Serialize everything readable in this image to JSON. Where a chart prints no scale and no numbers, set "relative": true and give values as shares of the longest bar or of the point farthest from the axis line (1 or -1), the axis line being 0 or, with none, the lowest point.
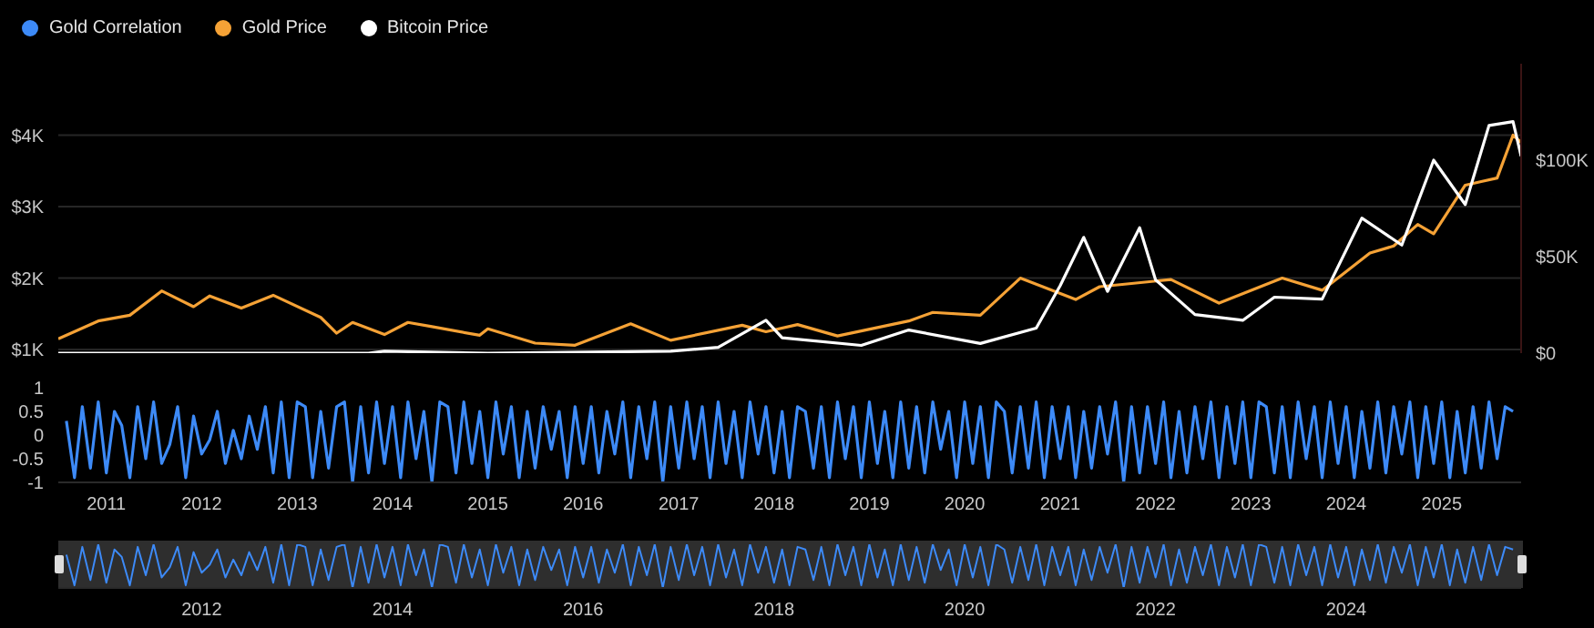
{
  "chart_data": [
    {
      "type": "line",
      "legend": "top left",
      "grid": "y",
      "tick_labels": "y",
      "ylim": [
        950,
        5000
      ],
      "yticks": [
        {
          "value": 1000,
          "label": "$1K"
        },
        {
          "value": 2000,
          "label": "$2K"
        },
        {
          "value": 3000,
          "label": "$3K"
        },
        {
          "value": 4000,
          "label": "$4K"
        }
      ],
      "y2lim": [
        0,
        150000
      ],
      "y2ticks": [
        {
          "value": 0,
          "label": "$0"
        },
        {
          "value": 50000,
          "label": "$50K"
        },
        {
          "value": 100000,
          "label": "$100K"
        }
      ],
      "xlim": [
        "2010-07",
        "2025-11"
      ],
      "series": [
        {
          "name": "Gold Price",
          "color": "#f5a236",
          "x": [
            "2010-07",
            "2010-12",
            "2011-04",
            "2011-08",
            "2011-12",
            "2012-02",
            "2012-06",
            "2012-10",
            "2013-04",
            "2013-06",
            "2013-08",
            "2013-12",
            "2014-03",
            "2014-06",
            "2014-12",
            "2015-01",
            "2015-07",
            "2015-12",
            "2016-07",
            "2016-12",
            "2017-09",
            "2017-12",
            "2018-04",
            "2018-09",
            "2019-06",
            "2019-09",
            "2020-03",
            "2020-08",
            "2021-03",
            "2021-06",
            "2022-03",
            "2022-09",
            "2023-05",
            "2023-10",
            "2024-04",
            "2024-07",
            "2024-10",
            "2024-12",
            "2025-04",
            "2025-06",
            "2025-08",
            "2025-10",
            "2025-11"
          ],
          "values": [
            1150,
            1400,
            1480,
            1820,
            1600,
            1750,
            1580,
            1760,
            1450,
            1230,
            1380,
            1210,
            1380,
            1320,
            1200,
            1290,
            1090,
            1060,
            1360,
            1130,
            1340,
            1250,
            1350,
            1190,
            1400,
            1520,
            1480,
            2000,
            1700,
            1880,
            1980,
            1650,
            2000,
            1830,
            2350,
            2450,
            2750,
            2620,
            3300,
            3350,
            3400,
            4000,
            3900
          ]
        },
        {
          "name": "Bitcoin Price",
          "color": "#ffffff",
          "axis": "y2",
          "x": [
            "2010-07",
            "2013-10",
            "2013-12",
            "2015-01",
            "2016-12",
            "2017-06",
            "2017-12",
            "2018-02",
            "2018-12",
            "2019-06",
            "2020-03",
            "2020-10",
            "2021-01",
            "2021-04",
            "2021-07",
            "2021-11",
            "2022-01",
            "2022-06",
            "2022-12",
            "2023-04",
            "2023-10",
            "2024-03",
            "2024-08",
            "2024-12",
            "2025-04",
            "2025-07",
            "2025-10",
            "2025-11"
          ],
          "values": [
            0,
            0,
            1000,
            0,
            1000,
            3000,
            17000,
            8000,
            4000,
            12000,
            5000,
            13000,
            35000,
            60000,
            32000,
            65000,
            38000,
            20000,
            17000,
            29000,
            28000,
            70000,
            56000,
            100000,
            77000,
            118000,
            120000,
            102000
          ]
        }
      ]
    },
    {
      "type": "line",
      "ylim": [
        -1,
        1
      ],
      "yticks": [
        1,
        0.5,
        0,
        -0.5,
        -1
      ],
      "xlim": [
        "2010-07",
        "2025-11"
      ],
      "xticks": [
        "2011",
        "2012",
        "2013",
        "2014",
        "2015",
        "2016",
        "2017",
        "2018",
        "2019",
        "2020",
        "2021",
        "2022",
        "2023",
        "2024",
        "2025"
      ],
      "x": [
        "2010-08",
        "2010-09",
        "2010-10",
        "2010-11",
        "2010-12",
        "2011-01",
        "2011-02",
        "2011-03",
        "2011-04",
        "2011-05",
        "2011-06",
        "2011-07",
        "2011-08",
        "2011-09",
        "2011-10",
        "2011-11",
        "2011-12",
        "2012-01",
        "2012-02",
        "2012-03",
        "2012-04",
        "2012-05",
        "2012-06",
        "2012-07",
        "2012-08",
        "2012-09",
        "2012-10",
        "2012-11",
        "2012-12",
        "2013-01",
        "2013-02",
        "2013-03",
        "2013-04",
        "2013-05",
        "2013-06",
        "2013-07",
        "2013-08",
        "2013-09",
        "2013-10",
        "2013-11",
        "2013-12",
        "2014-01",
        "2014-02",
        "2014-03",
        "2014-04",
        "2014-05",
        "2014-06",
        "2014-07",
        "2014-08",
        "2014-09",
        "2014-10",
        "2014-11",
        "2014-12",
        "2015-01",
        "2015-02",
        "2015-03",
        "2015-04",
        "2015-05",
        "2015-06",
        "2015-07",
        "2015-08",
        "2015-09",
        "2015-10",
        "2015-11",
        "2015-12",
        "2016-01",
        "2016-02",
        "2016-03",
        "2016-04",
        "2016-05",
        "2016-06",
        "2016-07",
        "2016-08",
        "2016-09",
        "2016-10",
        "2016-11",
        "2016-12",
        "2017-01",
        "2017-02",
        "2017-03",
        "2017-04",
        "2017-05",
        "2017-06",
        "2017-07",
        "2017-08",
        "2017-09",
        "2017-10",
        "2017-11",
        "2017-12",
        "2018-01",
        "2018-02",
        "2018-03",
        "2018-04",
        "2018-05",
        "2018-06",
        "2018-07",
        "2018-08",
        "2018-09",
        "2018-10",
        "2018-11",
        "2018-12",
        "2019-01",
        "2019-02",
        "2019-03",
        "2019-04",
        "2019-05",
        "2019-06",
        "2019-07",
        "2019-08",
        "2019-09",
        "2019-10",
        "2019-11",
        "2019-12",
        "2020-01",
        "2020-02",
        "2020-03",
        "2020-04",
        "2020-05",
        "2020-06",
        "2020-07",
        "2020-08",
        "2020-09",
        "2020-10",
        "2020-11",
        "2020-12",
        "2021-01",
        "2021-02",
        "2021-03",
        "2021-04",
        "2021-05",
        "2021-06",
        "2021-07",
        "2021-08",
        "2021-09",
        "2021-10",
        "2021-11",
        "2021-12",
        "2022-01",
        "2022-02",
        "2022-03",
        "2022-04",
        "2022-05",
        "2022-06",
        "2022-07",
        "2022-08",
        "2022-09",
        "2022-10",
        "2022-11",
        "2022-12",
        "2023-01",
        "2023-02",
        "2023-03",
        "2023-04",
        "2023-05",
        "2023-06",
        "2023-07",
        "2023-08",
        "2023-09",
        "2023-10",
        "2023-11",
        "2023-12",
        "2024-01",
        "2024-02",
        "2024-03",
        "2024-04",
        "2024-05",
        "2024-06",
        "2024-07",
        "2024-08",
        "2024-09",
        "2024-10",
        "2024-11",
        "2024-12",
        "2025-01",
        "2025-02",
        "2025-03",
        "2025-04",
        "2025-05",
        "2025-06",
        "2025-07",
        "2025-08",
        "2025-09",
        "2025-10"
      ],
      "series": [
        {
          "name": "Gold Correlation",
          "color": "#3d8af7",
          "values": [
            0.3,
            -0.9,
            0.6,
            -0.7,
            0.7,
            -0.8,
            0.5,
            0.2,
            -0.9,
            0.6,
            -0.5,
            0.7,
            -0.6,
            -0.2,
            0.6,
            -0.9,
            0.4,
            -0.4,
            -0.1,
            0.5,
            -0.6,
            0.1,
            -0.5,
            0.4,
            -0.3,
            0.6,
            -0.8,
            0.7,
            -0.9,
            0.7,
            0.6,
            -0.9,
            0.5,
            -0.7,
            0.6,
            0.7,
            -1,
            0.6,
            -0.8,
            0.7,
            -0.6,
            0.6,
            -0.9,
            0.7,
            -0.5,
            0.5,
            -1,
            0.7,
            0.6,
            -0.8,
            0.7,
            -0.6,
            0.5,
            -0.9,
            0.7,
            -0.4,
            0.6,
            -0.9,
            0.5,
            -0.7,
            0.6,
            -0.3,
            0.5,
            -0.9,
            0.6,
            -0.6,
            0.6,
            -0.8,
            0.5,
            -0.4,
            0.7,
            -0.9,
            0.6,
            -0.5,
            0.7,
            -1,
            0.6,
            -0.7,
            0.7,
            -0.5,
            0.6,
            -0.9,
            0.7,
            -0.6,
            0.5,
            -0.9,
            0.7,
            -0.4,
            0.6,
            -0.8,
            0.5,
            -0.9,
            0.6,
            0.5,
            -0.7,
            0.6,
            -0.9,
            0.7,
            -0.5,
            0.6,
            -0.9,
            0.7,
            -0.6,
            0.5,
            -0.9,
            0.7,
            -0.7,
            0.6,
            -0.8,
            0.7,
            -0.3,
            0.5,
            -0.9,
            0.7,
            -0.6,
            0.6,
            -0.9,
            0.7,
            0.5,
            -0.8,
            0.6,
            -0.7,
            0.7,
            -0.9,
            0.6,
            -0.5,
            0.6,
            -0.9,
            0.5,
            -0.7,
            0.6,
            -0.4,
            0.7,
            -1,
            0.6,
            -0.8,
            0.6,
            -0.6,
            0.7,
            -0.9,
            0.5,
            -0.8,
            0.6,
            -0.5,
            0.7,
            -0.9,
            0.6,
            -0.6,
            0.7,
            -0.9,
            0.7,
            0.6,
            -0.8,
            0.6,
            -0.9,
            0.7,
            -0.5,
            0.6,
            -0.9,
            0.7,
            -0.6,
            0.6,
            -0.9,
            0.5,
            -0.7,
            0.7,
            -0.8,
            0.6,
            -0.4,
            0.7,
            -0.9,
            0.6,
            -0.6,
            0.7,
            -0.9,
            0.5,
            -0.8,
            0.6,
            -0.7,
            0.7,
            -0.5,
            0.6,
            0.5
          ]
        }
      ]
    },
    {
      "type": "line",
      "relative": true,
      "xlim": [
        "2010-07",
        "2025-11"
      ],
      "xticks": [
        "2012",
        "2014",
        "2016",
        "2018",
        "2020",
        "2022",
        "2024"
      ],
      "x": [
        "2010-08",
        "2010-09",
        "2010-10",
        "2010-11",
        "2010-12",
        "2011-01",
        "2011-02",
        "2011-03",
        "2011-04",
        "2011-05",
        "2011-06",
        "2011-07",
        "2011-08",
        "2011-09",
        "2011-10",
        "2011-11",
        "2011-12",
        "2012-01",
        "2012-02",
        "2012-03",
        "2012-04",
        "2012-05",
        "2012-06",
        "2012-07",
        "2012-08",
        "2012-09",
        "2012-10",
        "2012-11",
        "2012-12",
        "2013-01",
        "2013-02",
        "2013-03",
        "2013-04",
        "2013-05",
        "2013-06",
        "2013-07",
        "2013-08",
        "2013-09",
        "2013-10",
        "2013-11",
        "2013-12",
        "2014-01",
        "2014-02",
        "2014-03",
        "2014-04",
        "2014-05",
        "2014-06",
        "2014-07",
        "2014-08",
        "2014-09",
        "2014-10",
        "2014-11",
        "2014-12",
        "2015-01",
        "2015-02",
        "2015-03",
        "2015-04",
        "2015-05",
        "2015-06",
        "2015-07",
        "2015-08",
        "2015-09",
        "2015-10",
        "2015-11",
        "2015-12",
        "2016-01",
        "2016-02",
        "2016-03",
        "2016-04",
        "2016-05",
        "2016-06",
        "2016-07",
        "2016-08",
        "2016-09",
        "2016-10",
        "2016-11",
        "2016-12",
        "2017-01",
        "2017-02",
        "2017-03",
        "2017-04",
        "2017-05",
        "2017-06",
        "2017-07",
        "2017-08",
        "2017-09",
        "2017-10",
        "2017-11",
        "2017-12",
        "2018-01",
        "2018-02",
        "2018-03",
        "2018-04",
        "2018-05",
        "2018-06",
        "2018-07",
        "2018-08",
        "2018-09",
        "2018-10",
        "2018-11",
        "2018-12",
        "2019-01",
        "2019-02",
        "2019-03",
        "2019-04",
        "2019-05",
        "2019-06",
        "2019-07",
        "2019-08",
        "2019-09",
        "2019-10",
        "2019-11",
        "2019-12",
        "2020-01",
        "2020-02",
        "2020-03",
        "2020-04",
        "2020-05",
        "2020-06",
        "2020-07",
        "2020-08",
        "2020-09",
        "2020-10",
        "2020-11",
        "2020-12",
        "2021-01",
        "2021-02",
        "2021-03",
        "2021-04",
        "2021-05",
        "2021-06",
        "2021-07",
        "2021-08",
        "2021-09",
        "2021-10",
        "2021-11",
        "2021-12",
        "2022-01",
        "2022-02",
        "2022-03",
        "2022-04",
        "2022-05",
        "2022-06",
        "2022-07",
        "2022-08",
        "2022-09",
        "2022-10",
        "2022-11",
        "2022-12",
        "2023-01",
        "2023-02",
        "2023-03",
        "2023-04",
        "2023-05",
        "2023-06",
        "2023-07",
        "2023-08",
        "2023-09",
        "2023-10",
        "2023-11",
        "2023-12",
        "2024-01",
        "2024-02",
        "2024-03",
        "2024-04",
        "2024-05",
        "2024-06",
        "2024-07",
        "2024-08",
        "2024-09",
        "2024-10",
        "2024-11",
        "2024-12",
        "2025-01",
        "2025-02",
        "2025-03",
        "2025-04",
        "2025-05",
        "2025-06",
        "2025-07",
        "2025-08",
        "2025-09",
        "2025-10"
      ],
      "series": [
        {
          "color": "#3d8af7",
          "values": [
            0.76,
            0.06,
            0.94,
            0.18,
            1,
            0.12,
            0.88,
            0.71,
            0.06,
            0.94,
            0.29,
            1,
            0.24,
            0.47,
            0.94,
            0.06,
            0.82,
            0.35,
            0.53,
            0.88,
            0.24,
            0.65,
            0.29,
            0.82,
            0.41,
            0.94,
            0.12,
            1,
            0.06,
            1,
            0.94,
            0.06,
            0.88,
            0.18,
            0.94,
            1,
            0,
            0.94,
            0.12,
            1,
            0.24,
            0.94,
            0.06,
            1,
            0.29,
            0.88,
            0,
            1,
            0.94,
            0.12,
            1,
            0.24,
            0.88,
            0.06,
            1,
            0.35,
            0.94,
            0.06,
            0.88,
            0.18,
            0.94,
            0.41,
            0.88,
            0.06,
            0.94,
            0.24,
            0.94,
            0.12,
            0.88,
            0.35,
            1,
            0.06,
            0.94,
            0.29,
            1,
            0,
            0.94,
            0.18,
            1,
            0.29,
            0.94,
            0.06,
            1,
            0.24,
            0.88,
            0.06,
            1,
            0.35,
            0.94,
            0.12,
            0.88,
            0.06,
            0.94,
            0.88,
            0.18,
            0.94,
            0.06,
            1,
            0.29,
            0.94,
            0.06,
            1,
            0.24,
            0.88,
            0.06,
            1,
            0.18,
            0.94,
            0.12,
            1,
            0.41,
            0.88,
            0.06,
            1,
            0.24,
            0.94,
            0.06,
            1,
            0.88,
            0.12,
            0.94,
            0.18,
            1,
            0.06,
            0.94,
            0.29,
            0.94,
            0.06,
            0.88,
            0.18,
            0.94,
            0.35,
            1,
            0,
            0.94,
            0.12,
            0.94,
            0.24,
            1,
            0.06,
            0.88,
            0.12,
            0.94,
            0.29,
            1,
            0.06,
            0.94,
            0.24,
            1,
            0.06,
            1,
            0.94,
            0.12,
            0.94,
            0.06,
            1,
            0.29,
            0.94,
            0.06,
            1,
            0.24,
            0.94,
            0.06,
            0.88,
            0.18,
            1,
            0.12,
            0.94,
            0.35,
            1,
            0.06,
            0.94,
            0.24,
            1,
            0.06,
            0.88,
            0.12,
            0.94,
            0.18,
            1,
            0.29,
            0.94,
            0.88
          ]
        }
      ]
    }
  ]
}
